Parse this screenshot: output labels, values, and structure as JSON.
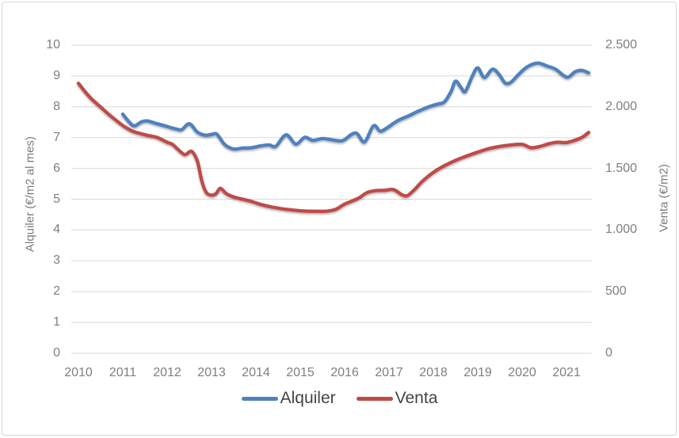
{
  "chart_data": {
    "type": "line",
    "title": "",
    "x_axis": {
      "labels": [
        "2010",
        "2011",
        "2012",
        "2013",
        "2014",
        "2015",
        "2016",
        "2017",
        "2018",
        "2019",
        "2020",
        "2021"
      ],
      "range": [
        2010,
        2021.6
      ]
    },
    "left_axis": {
      "title": "Alquiler (€/m2 al mes)",
      "min": 0,
      "max": 10,
      "ticks": [
        "0",
        "1",
        "2",
        "3",
        "4",
        "5",
        "6",
        "7",
        "8",
        "9",
        "10"
      ]
    },
    "right_axis": {
      "title": "Venta (€/m2)",
      "min": 0,
      "max": 2500,
      "ticks": [
        "0",
        "500",
        "1.000",
        "1.500",
        "2.000",
        "2.500"
      ]
    },
    "grid": "horizontal",
    "legend_position": "bottom",
    "series": [
      {
        "name": "Alquiler",
        "axis": "left",
        "unit": "€/m2 al mes",
        "color": "#4F81BD",
        "points": [
          [
            2011.0,
            7.76
          ],
          [
            2011.1,
            7.58
          ],
          [
            2011.25,
            7.38
          ],
          [
            2011.42,
            7.51
          ],
          [
            2011.55,
            7.54
          ],
          [
            2011.75,
            7.46
          ],
          [
            2012.0,
            7.36
          ],
          [
            2012.2,
            7.28
          ],
          [
            2012.33,
            7.26
          ],
          [
            2012.5,
            7.45
          ],
          [
            2012.68,
            7.18
          ],
          [
            2012.85,
            7.08
          ],
          [
            2013.0,
            7.1
          ],
          [
            2013.12,
            7.11
          ],
          [
            2013.3,
            6.77
          ],
          [
            2013.5,
            6.63
          ],
          [
            2013.7,
            6.66
          ],
          [
            2013.9,
            6.67
          ],
          [
            2014.1,
            6.73
          ],
          [
            2014.3,
            6.76
          ],
          [
            2014.45,
            6.72
          ],
          [
            2014.68,
            7.09
          ],
          [
            2014.9,
            6.79
          ],
          [
            2015.1,
            7.01
          ],
          [
            2015.28,
            6.91
          ],
          [
            2015.5,
            6.97
          ],
          [
            2015.7,
            6.93
          ],
          [
            2015.95,
            6.9
          ],
          [
            2016.15,
            7.1
          ],
          [
            2016.28,
            7.13
          ],
          [
            2016.45,
            6.86
          ],
          [
            2016.65,
            7.38
          ],
          [
            2016.8,
            7.21
          ],
          [
            2016.95,
            7.31
          ],
          [
            2017.2,
            7.55
          ],
          [
            2017.45,
            7.71
          ],
          [
            2017.65,
            7.85
          ],
          [
            2017.9,
            8.0
          ],
          [
            2018.1,
            8.09
          ],
          [
            2018.25,
            8.16
          ],
          [
            2018.4,
            8.5
          ],
          [
            2018.5,
            8.83
          ],
          [
            2018.62,
            8.63
          ],
          [
            2018.72,
            8.5
          ],
          [
            2018.88,
            9.0
          ],
          [
            2019.0,
            9.26
          ],
          [
            2019.15,
            8.95
          ],
          [
            2019.33,
            9.22
          ],
          [
            2019.48,
            9.05
          ],
          [
            2019.62,
            8.77
          ],
          [
            2019.75,
            8.8
          ],
          [
            2019.92,
            9.05
          ],
          [
            2020.12,
            9.3
          ],
          [
            2020.35,
            9.42
          ],
          [
            2020.55,
            9.33
          ],
          [
            2020.75,
            9.22
          ],
          [
            2020.95,
            9.0
          ],
          [
            2021.05,
            8.97
          ],
          [
            2021.2,
            9.14
          ],
          [
            2021.35,
            9.18
          ],
          [
            2021.5,
            9.1
          ]
        ]
      },
      {
        "name": "Venta",
        "axis": "right",
        "unit": "€/m2",
        "color": "#BE4B48",
        "points": [
          [
            2010.0,
            2190
          ],
          [
            2010.15,
            2122
          ],
          [
            2010.3,
            2062
          ],
          [
            2010.5,
            1998
          ],
          [
            2010.67,
            1943
          ],
          [
            2010.85,
            1890
          ],
          [
            2011.0,
            1848
          ],
          [
            2011.2,
            1805
          ],
          [
            2011.4,
            1782
          ],
          [
            2011.6,
            1765
          ],
          [
            2011.78,
            1750
          ],
          [
            2012.0,
            1712
          ],
          [
            2012.12,
            1695
          ],
          [
            2012.25,
            1652
          ],
          [
            2012.4,
            1612
          ],
          [
            2012.55,
            1638
          ],
          [
            2012.68,
            1560
          ],
          [
            2012.78,
            1400
          ],
          [
            2012.88,
            1305
          ],
          [
            2013.0,
            1283
          ],
          [
            2013.1,
            1295
          ],
          [
            2013.2,
            1338
          ],
          [
            2013.33,
            1296
          ],
          [
            2013.5,
            1268
          ],
          [
            2013.7,
            1250
          ],
          [
            2013.9,
            1232
          ],
          [
            2014.1,
            1208
          ],
          [
            2014.4,
            1184
          ],
          [
            2014.7,
            1167
          ],
          [
            2015.0,
            1156
          ],
          [
            2015.3,
            1152
          ],
          [
            2015.6,
            1153
          ],
          [
            2015.8,
            1168
          ],
          [
            2016.0,
            1210
          ],
          [
            2016.3,
            1256
          ],
          [
            2016.5,
            1303
          ],
          [
            2016.7,
            1320
          ],
          [
            2016.9,
            1322
          ],
          [
            2017.1,
            1328
          ],
          [
            2017.3,
            1285
          ],
          [
            2017.42,
            1280
          ],
          [
            2017.58,
            1330
          ],
          [
            2017.75,
            1395
          ],
          [
            2018.0,
            1468
          ],
          [
            2018.25,
            1522
          ],
          [
            2018.5,
            1565
          ],
          [
            2018.75,
            1600
          ],
          [
            2019.0,
            1632
          ],
          [
            2019.25,
            1660
          ],
          [
            2019.5,
            1678
          ],
          [
            2019.75,
            1690
          ],
          [
            2020.0,
            1695
          ],
          [
            2020.2,
            1668
          ],
          [
            2020.4,
            1678
          ],
          [
            2020.6,
            1700
          ],
          [
            2020.8,
            1713
          ],
          [
            2021.0,
            1710
          ],
          [
            2021.2,
            1730
          ],
          [
            2021.35,
            1752
          ],
          [
            2021.5,
            1792
          ]
        ]
      }
    ]
  }
}
